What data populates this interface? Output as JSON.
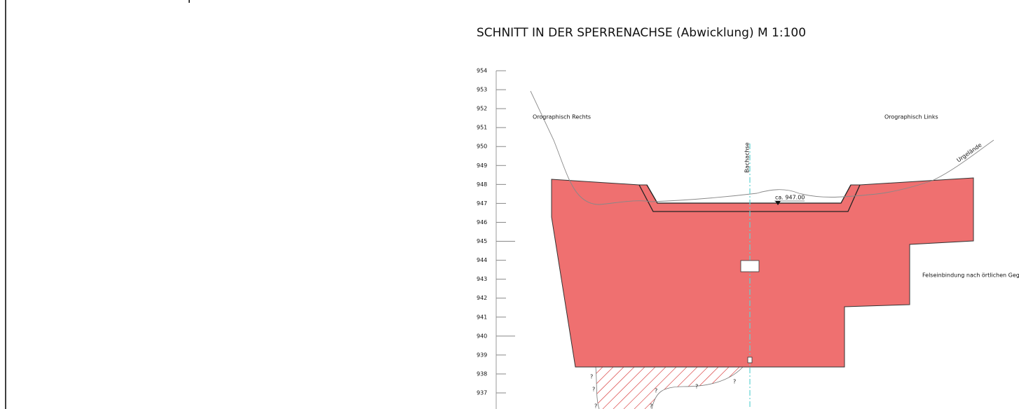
{
  "title": "SCHNITT IN DER SPERRENACHSE (Abwicklung) M 1:100",
  "elevations": [
    954,
    953,
    952,
    951,
    950,
    949,
    948,
    947,
    946,
    945,
    944,
    943,
    942,
    941,
    940,
    939,
    938,
    937
  ],
  "annotations": {
    "right_bank": "Orographisch Rechts",
    "left_bank": "Orographisch Links",
    "terrain": "Urgelände",
    "axis": "Bachachse",
    "level": "ca. 947.00",
    "rock": "Felseinbindung nach örtlichen Gegeb"
  },
  "question_marks": [
    "?",
    "?",
    "?",
    "?",
    "?",
    "?",
    "?"
  ]
}
